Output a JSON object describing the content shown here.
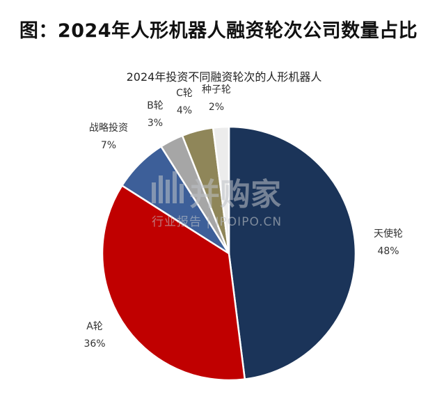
{
  "page_title": "图：2024年人形机器人融资轮次公司数量占比",
  "watermark": {
    "brand": "并购家",
    "tagline": "行业报告 | IPOIPO.CN"
  },
  "chart_data": {
    "type": "pie",
    "title": "2024年投资不同融资轮次的人形机器人",
    "labels": [
      "天使轮",
      "A轮",
      "战略投资",
      "B轮",
      "C轮",
      "种子轮"
    ],
    "values": [
      48,
      36,
      7,
      3,
      4,
      2
    ],
    "value_labels": [
      "48%",
      "36%",
      "7%",
      "3%",
      "4%",
      "2%"
    ],
    "colors": [
      "#1b3459",
      "#c00000",
      "#3d5f99",
      "#a6a6a6",
      "#8f8659",
      "#ececec"
    ],
    "legend": "none"
  }
}
